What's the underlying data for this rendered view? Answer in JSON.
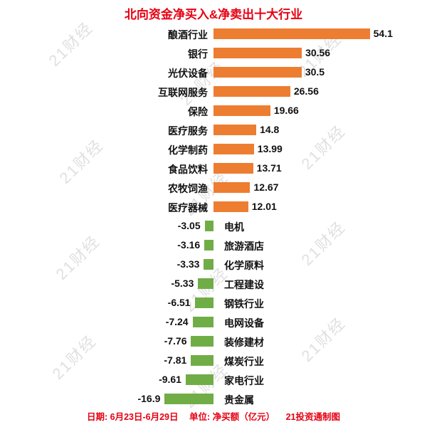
{
  "title": "北向资金净买入&净卖出十大行业",
  "watermark": "21财经",
  "footer": {
    "date": "日期: 6月23日-6月29日",
    "unit": "单位: 净买额（亿元）",
    "credit": "21投资通制图"
  },
  "colors": {
    "positive_bar": "#ED7D31",
    "negative_bar": "#70AD47",
    "title_text": "#E60012",
    "footer_text": "#E60012",
    "watermark_text": "#D9D9D9"
  },
  "chart_data": {
    "type": "bar",
    "orientation": "horizontal",
    "title": "北向资金净买入&净卖出十大行业",
    "unit": "净买额（亿元）",
    "period": "6月23日-6月29日",
    "xlim": [
      -20,
      60
    ],
    "categories": [
      "酿酒行业",
      "银行",
      "光伏设备",
      "互联网服务",
      "保险",
      "医疗服务",
      "化学制药",
      "食品饮料",
      "农牧饲渔",
      "医疗器械",
      "电机",
      "旅游酒店",
      "化学原料",
      "工程建设",
      "钢铁行业",
      "电网设备",
      "装修建材",
      "煤炭行业",
      "家电行业",
      "贵金属"
    ],
    "values": [
      54.1,
      30.56,
      30.5,
      26.56,
      19.66,
      14.8,
      13.99,
      13.71,
      12.67,
      12.01,
      -3.05,
      -3.16,
      -3.33,
      -5.33,
      -6.51,
      -7.24,
      -7.76,
      -7.81,
      -9.61,
      -16.9
    ]
  }
}
